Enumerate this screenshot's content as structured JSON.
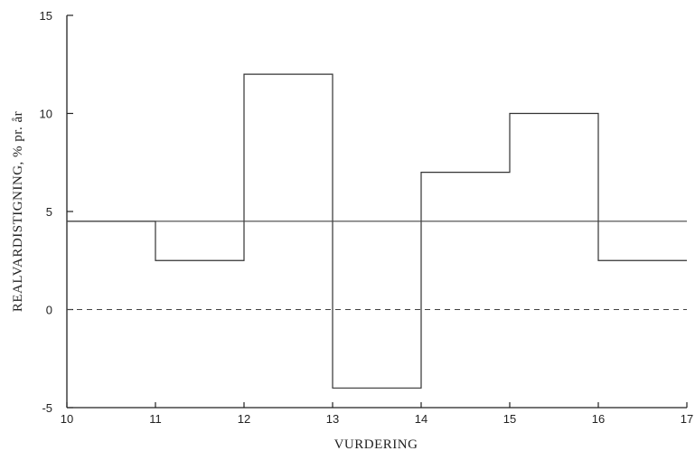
{
  "chart_data": {
    "type": "line",
    "step": true,
    "xlabel": "VURDERING",
    "ylabel": "REALVARDISTIGNING, % pr. år",
    "xlim": [
      10,
      17
    ],
    "ylim": [
      -5,
      15
    ],
    "x_ticks": [
      10,
      11,
      12,
      13,
      14,
      15,
      16,
      17
    ],
    "y_ticks": [
      -5,
      0,
      5,
      10,
      15
    ],
    "grid": false,
    "series": [
      {
        "style": "solid-step",
        "x": [
          10,
          11,
          12,
          13,
          14,
          15,
          16,
          17
        ],
        "values": [
          4.5,
          2.5,
          12,
          -4,
          7,
          10,
          2.5,
          2.5
        ]
      },
      {
        "style": "solid-line",
        "x": [
          10,
          17
        ],
        "values": [
          4.5,
          4.5
        ]
      },
      {
        "style": "dashed-line",
        "x": [
          10,
          17
        ],
        "values": [
          0,
          0
        ]
      }
    ]
  }
}
